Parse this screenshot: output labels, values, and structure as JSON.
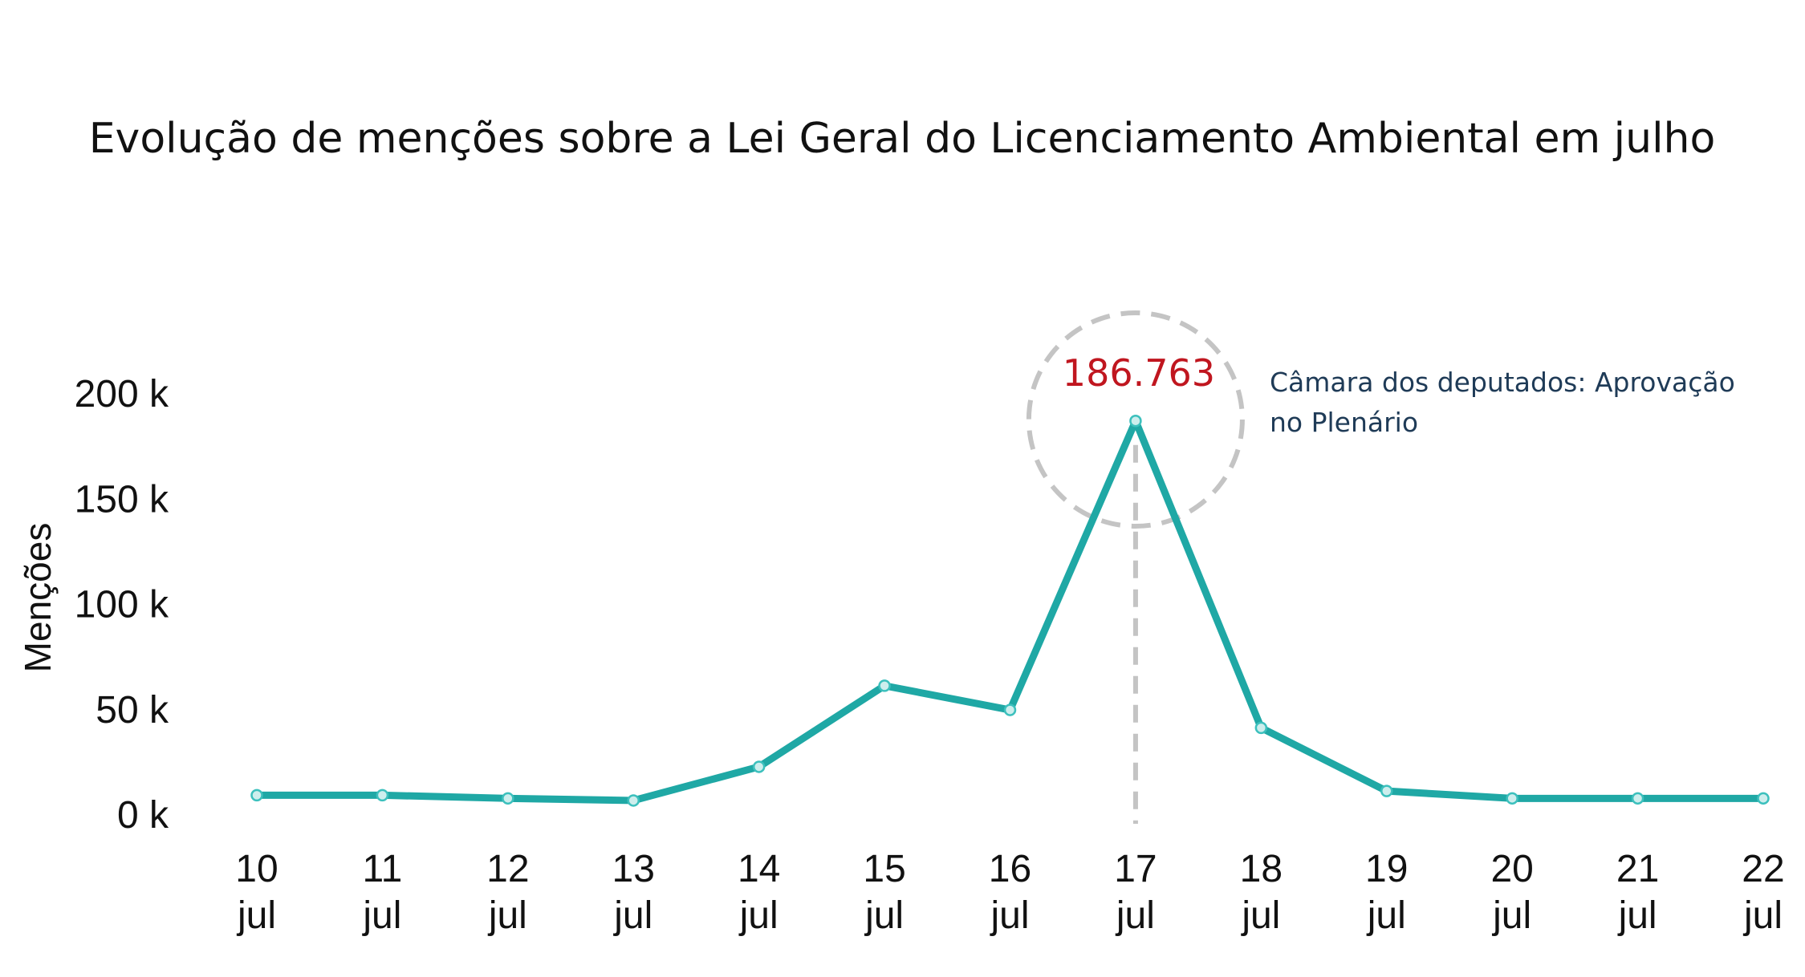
{
  "chart_data": {
    "type": "line",
    "title": "Evolução de menções sobre a Lei Geral do Licenciamento Ambiental em julho",
    "ylabel": "Menções",
    "xlabel": "",
    "ylim": [
      0,
      200000
    ],
    "yticks": [
      {
        "value": 0,
        "label": "0 k"
      },
      {
        "value": 50000,
        "label": "50 k"
      },
      {
        "value": 100000,
        "label": "100 k"
      },
      {
        "value": 150000,
        "label": "150 k"
      },
      {
        "value": 200000,
        "label": "200 k"
      }
    ],
    "categories": [
      {
        "day": "10",
        "month": "jul"
      },
      {
        "day": "11",
        "month": "jul"
      },
      {
        "day": "12",
        "month": "jul"
      },
      {
        "day": "13",
        "month": "jul"
      },
      {
        "day": "14",
        "month": "jul"
      },
      {
        "day": "15",
        "month": "jul"
      },
      {
        "day": "16",
        "month": "jul"
      },
      {
        "day": "17",
        "month": "jul"
      },
      {
        "day": "18",
        "month": "jul"
      },
      {
        "day": "19",
        "month": "jul"
      },
      {
        "day": "20",
        "month": "jul"
      },
      {
        "day": "21",
        "month": "jul"
      },
      {
        "day": "22",
        "month": "jul"
      }
    ],
    "values": [
      9000,
      9000,
      7500,
      6500,
      22500,
      61000,
      49500,
      186763,
      41000,
      11000,
      7500,
      7500,
      7500
    ],
    "grid": false,
    "legend": "none",
    "colors": {
      "line": "#1fa8a5",
      "marker_stroke": "#3cc0bd",
      "marker_fill": "#cdeeed",
      "peak_label": "#c0161f",
      "annotation": "#1f3b57",
      "highlight": "#c4c4c4"
    },
    "highlight": {
      "index": 7,
      "value_label": "186.763",
      "annotation": [
        "Câmara dos deputados: Aprovação",
        "no Plenário"
      ]
    }
  }
}
